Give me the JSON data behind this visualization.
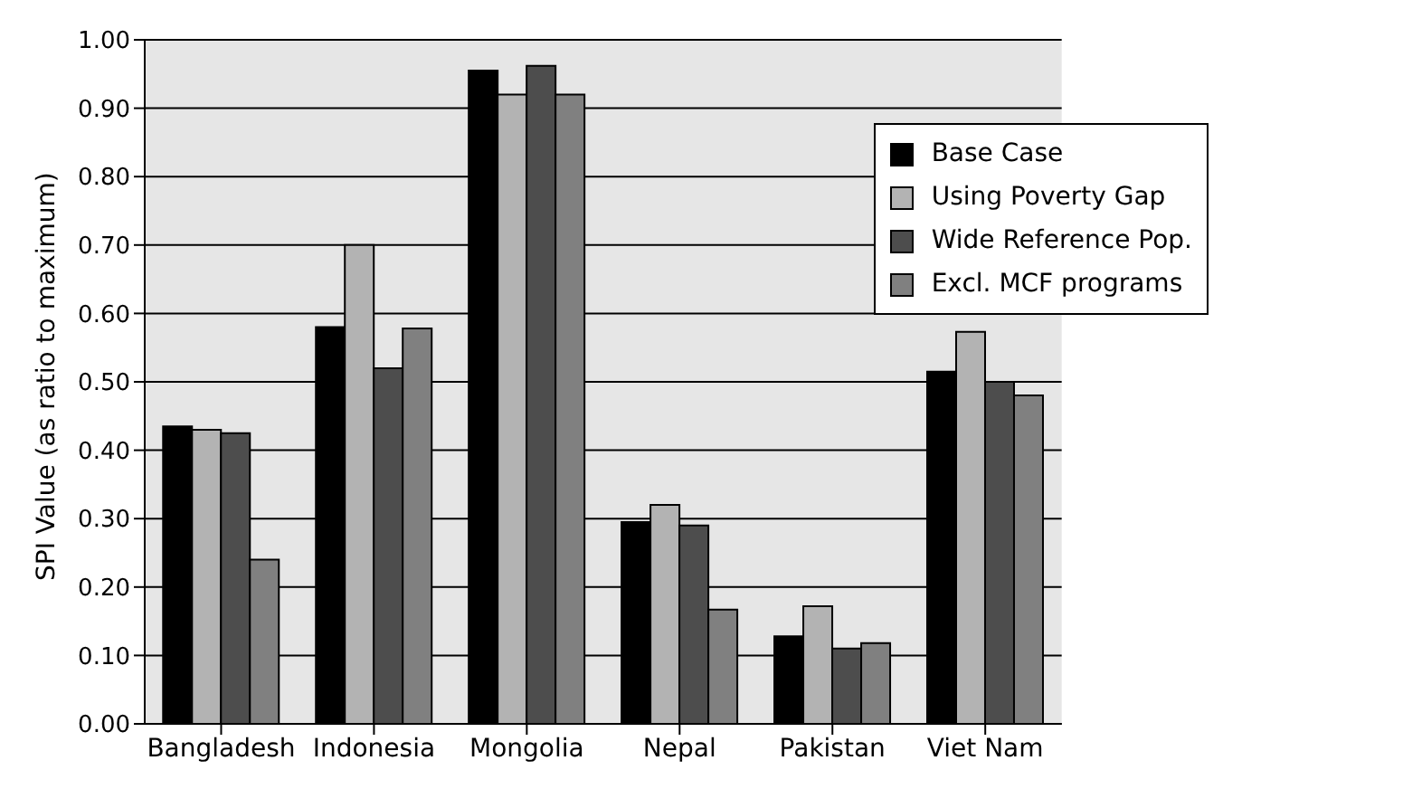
{
  "chart_data": {
    "type": "bar",
    "ylabel": "SPI Value (as ratio to maximum)",
    "categories": [
      "Bangladesh",
      "Indonesia",
      "Mongolia",
      "Nepal",
      "Pakistan",
      "Viet Nam"
    ],
    "series": [
      {
        "name": "Base Case",
        "color": "#000000",
        "values": [
          0.435,
          0.58,
          0.955,
          0.295,
          0.128,
          0.515
        ]
      },
      {
        "name": "Using Poverty Gap",
        "color": "#b3b3b3",
        "values": [
          0.43,
          0.7,
          0.92,
          0.32,
          0.172,
          0.573
        ]
      },
      {
        "name": "Wide Reference Pop.",
        "color": "#4d4d4d",
        "values": [
          0.425,
          0.52,
          0.962,
          0.29,
          0.11,
          0.5
        ]
      },
      {
        "name": "Excl. MCF programs",
        "color": "#808080",
        "values": [
          0.24,
          0.578,
          0.92,
          0.167,
          0.118,
          0.48
        ]
      }
    ],
    "ylim": [
      0,
      1
    ],
    "yticks": [
      {
        "value": 0,
        "label": "0.00"
      },
      {
        "value": 0.1,
        "label": "0.10"
      },
      {
        "value": 0.2,
        "label": "0.20"
      },
      {
        "value": 0.3,
        "label": "0.30"
      },
      {
        "value": 0.4,
        "label": "0.40"
      },
      {
        "value": 0.5,
        "label": "0.50"
      },
      {
        "value": 0.6,
        "label": "0.60"
      },
      {
        "value": 0.7,
        "label": "0.70"
      },
      {
        "value": 0.8,
        "label": "0.80"
      },
      {
        "value": 0.9,
        "label": "0.90"
      },
      {
        "value": 1,
        "label": "1.00"
      }
    ],
    "grid": "y",
    "legend": "top right"
  }
}
